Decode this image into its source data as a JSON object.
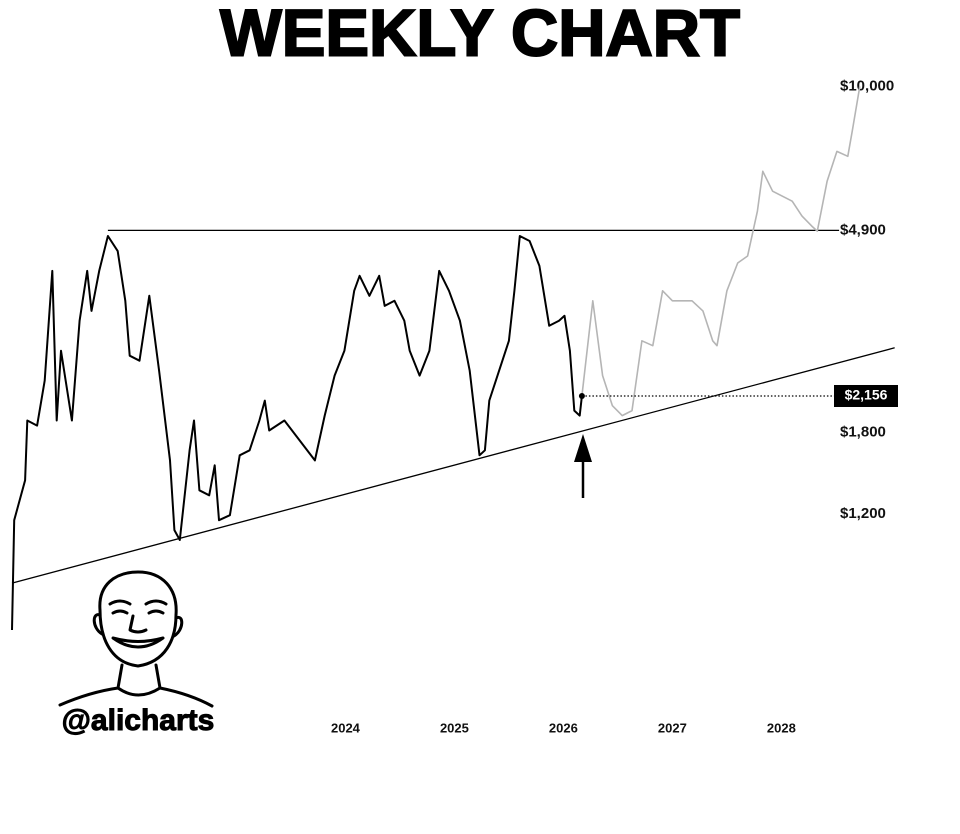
{
  "chart_data": {
    "type": "line",
    "title": "WEEKLY CHART",
    "handle": "@alicharts",
    "yscale": "log",
    "xlim": [
      2020.94,
      2029.3
    ],
    "ylim": [
      676,
      11400
    ],
    "xticks": [
      2024,
      2025,
      2026,
      2027,
      2028
    ],
    "yticks": [
      {
        "value": 1200,
        "label": "$1,200"
      },
      {
        "value": 1800,
        "label": "$1,800"
      },
      {
        "value": 4900,
        "label": "$4,900"
      },
      {
        "value": 10000,
        "label": "$10,000"
      }
    ],
    "grid": false,
    "series": [
      {
        "color": "#000000",
        "x": [
          2020.94,
          2020.96,
          2021.06,
          2021.08,
          2021.17,
          2021.24,
          2021.31,
          2021.35,
          2021.39,
          2021.49,
          2021.56,
          2021.63,
          2021.67,
          2021.74,
          2021.82,
          2021.91,
          2021.98,
          2022.02,
          2022.11,
          2022.2,
          2022.29,
          2022.39,
          2022.43,
          2022.48,
          2022.57,
          2022.61,
          2022.66,
          2022.75,
          2022.8,
          2022.84,
          2022.94,
          2023.03,
          2023.12,
          2023.21,
          2023.26,
          2023.3,
          2023.44,
          2023.58,
          2023.72,
          2023.81,
          2023.9,
          2023.99,
          2024.08,
          2024.13,
          2024.22,
          2024.31,
          2024.36,
          2024.45,
          2024.54,
          2024.59,
          2024.68,
          2024.77,
          2024.86,
          2024.95,
          2025.05,
          2025.14,
          2025.23,
          2025.28,
          2025.32,
          2025.41,
          2025.5,
          2025.55,
          2025.6,
          2025.69,
          2025.78,
          2025.87,
          2025.96,
          2026.01,
          2026.06,
          2026.1,
          2026.15,
          2026.17
        ],
        "values": [
          676,
          1165,
          1420,
          1909,
          1862,
          2327,
          4008,
          1909,
          2698,
          1909,
          3131,
          4008,
          3288,
          4008,
          4764,
          4421,
          3456,
          2633,
          2568,
          3542,
          2444,
          1567,
          1109,
          1056,
          1647,
          1909,
          1351,
          1318,
          1529,
          1165,
          1194,
          1607,
          1647,
          1909,
          2107,
          1817,
          1909,
          1729,
          1567,
          1956,
          2385,
          2698,
          3631,
          3911,
          3542,
          3911,
          3370,
          3456,
          3131,
          2698,
          2385,
          2698,
          4008,
          3631,
          3131,
          2444,
          1607,
          1647,
          2107,
          2444,
          2835,
          3631,
          4764,
          4648,
          4108,
          3053,
          3131,
          3209,
          2698,
          2005,
          1956,
          2156
        ]
      },
      {
        "color": "#b5b5b5",
        "x": [
          2026.17,
          2026.27,
          2026.36,
          2026.45,
          2026.54,
          2026.63,
          2026.72,
          2026.82,
          2026.91,
          2027.0,
          2027.09,
          2027.18,
          2027.28,
          2027.37,
          2027.41,
          2027.5,
          2027.6,
          2027.69,
          2027.78,
          2027.83,
          2027.92,
          2028.01,
          2028.1,
          2028.19,
          2028.28,
          2028.33,
          2028.42,
          2028.51,
          2028.61,
          2028.65,
          2028.72
        ],
        "values": [
          2156,
          3456,
          2385,
          2055,
          1956,
          2005,
          2835,
          2766,
          3631,
          3456,
          3456,
          3456,
          3288,
          2835,
          2766,
          3631,
          4169,
          4316,
          5389,
          6566,
          5950,
          5803,
          5662,
          5258,
          5005,
          4883,
          6250,
          7248,
          7073,
          8002,
          10000
        ]
      }
    ],
    "resistance": {
      "x": [
        2021.82,
        2028.53
      ],
      "values": [
        4900,
        4900
      ]
    },
    "support": {
      "x": [
        2020.94,
        2029.04
      ],
      "values": [
        853,
        2738
      ]
    },
    "marker": {
      "x": [
        2026.17,
        2028.53
      ],
      "value": 2156,
      "label": "$2,156"
    }
  }
}
